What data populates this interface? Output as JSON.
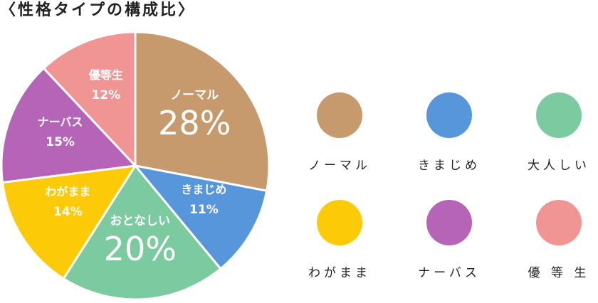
{
  "colors": {
    "normal": "#c69a6c",
    "majime": "#5896dc",
    "otonashii": "#7ccaa0",
    "wagamama": "#fdca07",
    "nervous": "#b564b7",
    "yutousei": "#f09494"
  },
  "chart_data": {
    "type": "pie",
    "title": "〈性格タイプの構成比〉",
    "slices": [
      {
        "label": "ノーマル",
        "value": 28,
        "value_label": "28%",
        "color": "#c69a6c",
        "emphasis": true
      },
      {
        "label": "きまじめ",
        "value": 11,
        "value_label": "11%",
        "color": "#5896dc",
        "emphasis": false
      },
      {
        "label": "おとなしい",
        "value": 20,
        "value_label": "20%",
        "color": "#7ccaa0",
        "emphasis": true
      },
      {
        "label": "わがまま",
        "value": 14,
        "value_label": "14%",
        "color": "#fdca07",
        "emphasis": false
      },
      {
        "label": "ナーバス",
        "value": 15,
        "value_label": "15%",
        "color": "#b564b7",
        "emphasis": false
      },
      {
        "label": "優等生",
        "value": 12,
        "value_label": "12%",
        "color": "#f09494",
        "emphasis": false
      }
    ],
    "legend": {
      "position": "right",
      "items": [
        {
          "label": "ノーマル",
          "color": "#c69a6c"
        },
        {
          "label": "きまじめ",
          "color": "#5896dc"
        },
        {
          "label": "大人しい",
          "color": "#7ccaa0"
        },
        {
          "label": "わがまま",
          "color": "#fdca07"
        },
        {
          "label": "ナーバス",
          "color": "#b564b7"
        },
        {
          "label": "優 等 生",
          "color": "#f09494"
        }
      ]
    }
  }
}
